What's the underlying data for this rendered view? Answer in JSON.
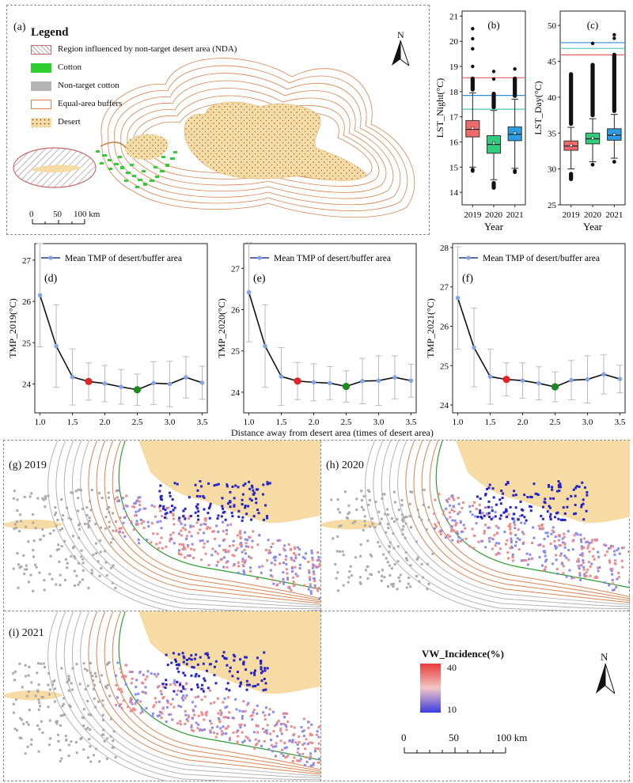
{
  "panel_a": {
    "tag": "(a)",
    "legend_title": "Legend",
    "legend": [
      {
        "label": "Region influenced by non-target desert area (NDA)",
        "swatch": "hatch",
        "color": "#c96b6b"
      },
      {
        "label": "Cotton",
        "swatch": "fill",
        "color": "#2fcf2f"
      },
      {
        "label": "Non-target cotton",
        "swatch": "fill",
        "color": "#b5b5b5"
      },
      {
        "label": "Equal-area buffers",
        "swatch": "outline",
        "color": "#d9824f"
      },
      {
        "label": "Desert",
        "swatch": "dots",
        "color": "#f6dba4"
      }
    ],
    "north": "N",
    "scale_labels": [
      "0",
      "50",
      "100 km"
    ]
  },
  "chart_data": [
    {
      "id": "b",
      "type": "box",
      "tag": "(b)",
      "categories": [
        "2019",
        "2020",
        "2021"
      ],
      "xlabel": "Year",
      "ylabel": "LST_Night(°C)",
      "ylim": [
        13.5,
        21.2
      ],
      "yticks": [
        14,
        15,
        16,
        17,
        18,
        19,
        20,
        21
      ],
      "boxes": [
        {
          "q1": 16.2,
          "median": 16.5,
          "q3": 16.85,
          "mean": 16.55,
          "low": 15.0,
          "high": 17.95,
          "color": "#f06a6a",
          "out_lo": [
            14.9,
            14.85
          ],
          "out_hi_from": 18.0,
          "out_hi_to": 18.6,
          "top_dots": [
            19.0,
            19.7,
            20.1,
            20.5
          ]
        },
        {
          "q1": 15.55,
          "median": 15.9,
          "q3": 16.25,
          "mean": 15.95,
          "low": 14.5,
          "high": 17.25,
          "color": "#32cc7e",
          "out_lo_from": 14.1,
          "out_lo_to": 14.45,
          "out_hi_from": 17.3,
          "out_hi_to": 18.0,
          "top_dots": [
            18.5,
            18.8
          ]
        },
        {
          "q1": 16.05,
          "median": 16.3,
          "q3": 16.6,
          "mean": 16.35,
          "low": 14.95,
          "high": 17.7,
          "color": "#2b9de6",
          "out_lo": [
            14.85,
            14.8
          ],
          "out_hi_from": 17.75,
          "out_hi_to": 18.6,
          "top_dots": [
            18.9
          ]
        }
      ],
      "hlines": [
        {
          "y": 18.55,
          "color": "#e06060"
        },
        {
          "y": 17.85,
          "color": "#2a8fd8"
        },
        {
          "y": 17.3,
          "color": "#4cc7b5"
        }
      ]
    },
    {
      "id": "c",
      "type": "box",
      "tag": "(c)",
      "categories": [
        "2019",
        "2020",
        "2021"
      ],
      "xlabel": "Year",
      "ylabel": "LST_Day(°C)",
      "ylim": [
        25,
        52
      ],
      "yticks": [
        25,
        30,
        35,
        40,
        45,
        50
      ],
      "boxes": [
        {
          "q1": 32.6,
          "median": 33.2,
          "q3": 33.9,
          "mean": 33.3,
          "low": 30.0,
          "high": 35.8,
          "color": "#f06a6a",
          "out_lo_from": 28.3,
          "out_lo_to": 29.6,
          "out_hi_from": 36.0,
          "out_hi_to": 43.5,
          "top_dots": []
        },
        {
          "q1": 33.5,
          "median": 34.2,
          "q3": 35.0,
          "mean": 34.3,
          "low": 31.0,
          "high": 37.0,
          "color": "#32cc7e",
          "out_lo": [
            30.6
          ],
          "out_hi_from": 37.2,
          "out_hi_to": 44.8,
          "top_dots": [
            47.5
          ]
        },
        {
          "q1": 34.0,
          "median": 34.7,
          "q3": 35.6,
          "mean": 34.8,
          "low": 31.5,
          "high": 37.6,
          "color": "#2b9de6",
          "out_lo": [
            31.0
          ],
          "out_hi_from": 37.8,
          "out_hi_to": 46.2,
          "top_dots": [
            48.2,
            48.7
          ]
        }
      ],
      "hlines": [
        {
          "y": 47.6,
          "color": "#2a8fd8"
        },
        {
          "y": 46.8,
          "color": "#4cc7b5"
        },
        {
          "y": 45.9,
          "color": "#e06060"
        }
      ]
    },
    {
      "id": "d",
      "type": "line",
      "tag": "(d)",
      "legend": "Mean TMP of desert/buffer area",
      "ylabel": "TMP_2019(°C)",
      "x": [
        1.0,
        1.25,
        1.5,
        1.75,
        2.0,
        2.25,
        2.5,
        2.75,
        3.0,
        3.25,
        3.5
      ],
      "y": [
        26.15,
        24.92,
        24.17,
        24.06,
        24.01,
        23.93,
        23.86,
        24.02,
        24.0,
        24.16,
        24.03
      ],
      "err": [
        1.25,
        1.0,
        0.68,
        0.45,
        0.44,
        0.42,
        0.38,
        0.52,
        0.55,
        0.5,
        0.4
      ],
      "ylim": [
        23.3,
        27.4
      ],
      "yticks": [
        24,
        25,
        26,
        27
      ],
      "xticks": [
        1.0,
        1.5,
        2.0,
        2.5,
        3.0,
        3.5
      ],
      "xlabels": [
        "1.0",
        "1.5",
        "2.0",
        "2.5",
        "3.0",
        "3.5"
      ],
      "highlight": {
        "red": 3,
        "green": 6
      }
    },
    {
      "id": "e",
      "type": "line",
      "tag": "(e)",
      "legend": "Mean TMP of desert/buffer area",
      "ylabel": "TMP_2020(°C)",
      "x": [
        1.0,
        1.25,
        1.5,
        1.75,
        2.0,
        2.25,
        2.5,
        2.75,
        3.0,
        3.25,
        3.5
      ],
      "y": [
        26.42,
        25.12,
        24.38,
        24.27,
        24.24,
        24.22,
        24.14,
        24.27,
        24.28,
        24.36,
        24.28
      ],
      "err": [
        1.2,
        1.0,
        0.7,
        0.45,
        0.45,
        0.4,
        0.38,
        0.55,
        0.6,
        0.52,
        0.4
      ],
      "ylim": [
        23.5,
        27.6
      ],
      "yticks": [
        24,
        25,
        26,
        27
      ],
      "xticks": [
        1.0,
        1.5,
        2.0,
        2.5,
        3.0,
        3.5
      ],
      "xlabels": [
        "1.0",
        "1.5",
        "2.0",
        "2.5",
        "3.0",
        "3.5"
      ],
      "highlight": {
        "red": 3,
        "green": 6
      }
    },
    {
      "id": "f",
      "type": "line",
      "tag": "(f)",
      "legend": "Mean TMP of desert/buffer area",
      "ylabel": "TMP_2021(°C)",
      "x": [
        1.0,
        1.25,
        1.5,
        1.75,
        2.0,
        2.25,
        2.5,
        2.75,
        3.0,
        3.25,
        3.5
      ],
      "y": [
        26.72,
        25.46,
        24.72,
        24.65,
        24.62,
        24.55,
        24.46,
        24.63,
        24.65,
        24.78,
        24.66
      ],
      "err": [
        1.3,
        1.0,
        0.7,
        0.42,
        0.45,
        0.42,
        0.38,
        0.5,
        0.6,
        0.5,
        0.35
      ],
      "ylim": [
        23.8,
        28.1
      ],
      "yticks": [
        24,
        25,
        26,
        27,
        28
      ],
      "xticks": [
        1.0,
        1.5,
        2.0,
        2.5,
        3.0,
        3.5
      ],
      "xlabels": [
        "1.0",
        "1.5",
        "2.0",
        "2.5",
        "3.0",
        "3.5"
      ],
      "highlight": {
        "red": 3,
        "green": 6
      }
    }
  ],
  "shared_xlabel": "Distance away from desert area (times of desert area)",
  "maps": [
    {
      "id": "g",
      "tag": "(g)  2019"
    },
    {
      "id": "h",
      "tag": "(h)  2020"
    },
    {
      "id": "i",
      "tag": "(i)  2021"
    }
  ],
  "incidence_legend": {
    "title": "VW_Incidence(%)",
    "max": "40",
    "min": "10",
    "color_high": "#e83a3a",
    "color_low": "#3b3be0"
  },
  "bottom_north": "N",
  "bottom_scale_labels": [
    "0",
    "50",
    "100 km"
  ]
}
